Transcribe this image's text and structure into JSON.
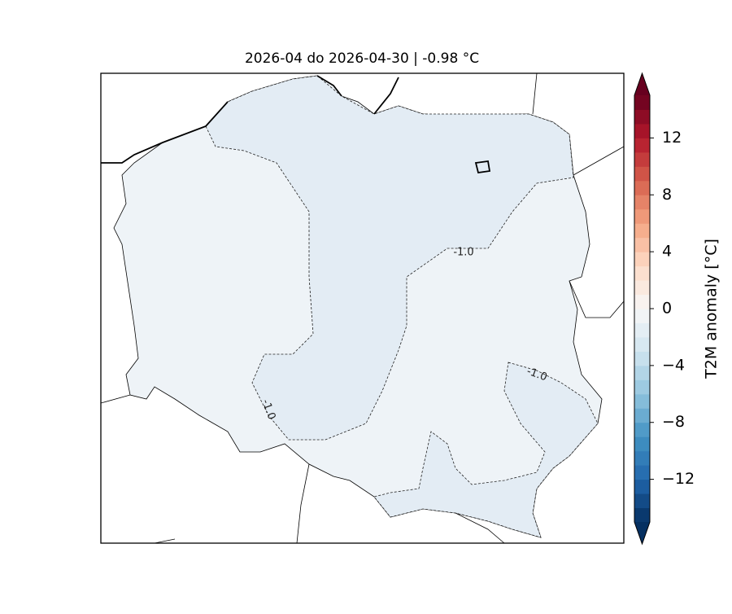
{
  "title": "2026-04 do 2026-04-30 | -0.98 °C",
  "colorbar": {
    "label": "T2M anomaly [°C]",
    "lim": [
      -15,
      15
    ],
    "step": 1,
    "ticks": [
      -12,
      -8,
      -4,
      0,
      4,
      8,
      12
    ],
    "tick_labels": [
      "−12",
      "−8",
      "−4",
      "0",
      "4",
      "8",
      "12"
    ],
    "colors": [
      "#053061",
      "#2166ac",
      "#4393c3",
      "#92c5de",
      "#d1e5f0",
      "#f7f7f7",
      "#fddbc7",
      "#f4a582",
      "#d6604d",
      "#b2182b",
      "#67001f"
    ]
  },
  "contour_labels": [
    "-1.0",
    "-1.0",
    "-1.0"
  ]
}
